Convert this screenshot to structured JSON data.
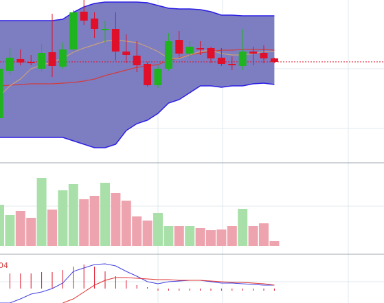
{
  "chart_data": [
    {
      "type": "candlestick",
      "ylim": [
        0,
        235
      ],
      "open": [
        63,
        132,
        149,
        145,
        135,
        159,
        138,
        163,
        218,
        208,
        191,
        193,
        160,
        154,
        142,
        111,
        135,
        177,
        157,
        165,
        165,
        151,
        142,
        139,
        160,
        158,
        150
      ],
      "high": [
        145,
        165,
        163,
        155,
        171,
        215,
        173,
        220,
        235,
        217,
        205,
        217,
        185,
        175,
        145,
        140,
        187,
        190,
        175,
        175,
        167,
        165,
        153,
        193,
        167,
        169,
        151
      ],
      "low": [
        63,
        127,
        140,
        140,
        131,
        123,
        135,
        160,
        199,
        180,
        173,
        147,
        143,
        130,
        109,
        107,
        132,
        153,
        150,
        155,
        143,
        139,
        133,
        133,
        140,
        143,
        143
      ],
      "close": [
        135,
        151,
        144,
        143,
        158,
        139,
        163,
        217,
        205,
        193,
        193,
        160,
        155,
        140,
        111,
        135,
        175,
        157,
        167,
        163,
        150,
        142,
        140,
        160,
        157,
        150,
        145
      ],
      "upper": [
        205,
        205,
        205,
        205,
        205,
        205,
        207,
        217,
        225,
        230,
        232,
        232,
        232,
        232,
        231,
        227,
        223,
        222,
        222,
        221,
        218,
        213,
        213,
        212,
        212,
        212,
        212
      ],
      "lower": [
        35,
        35,
        35,
        35,
        35,
        35,
        35,
        30,
        25,
        20,
        20,
        25,
        45,
        55,
        60,
        70,
        85,
        90,
        100,
        110,
        110,
        108,
        110,
        110,
        113,
        114,
        112
      ],
      "middle": [
        110,
        111,
        112,
        113,
        113,
        113,
        114,
        115,
        117,
        120,
        125,
        129,
        133,
        137,
        139,
        141,
        147,
        151,
        155,
        158,
        160,
        162,
        162,
        163,
        163,
        163,
        162
      ],
      "ma": [
        95,
        110,
        120,
        135,
        140,
        145,
        150,
        159,
        165,
        170,
        175,
        177,
        175,
        173,
        167,
        160,
        150,
        150,
        155,
        160,
        162,
        157,
        155,
        155,
        157,
        160,
        160
      ],
      "ref_line": 145,
      "up_color": "#1fb31f",
      "down_color": "#e0102a",
      "band_color": "#2a1ee6",
      "band_fill": "#7d7dc2",
      "middle_color": "#d23c3c",
      "ma_color": "#c9a27a"
    },
    {
      "type": "volume",
      "ylim": [
        0,
        121
      ],
      "values": [
        60,
        45,
        51,
        41,
        99,
        53,
        81,
        90,
        68,
        73,
        92,
        77,
        66,
        43,
        37,
        48,
        29,
        29,
        29,
        26,
        23,
        24,
        29,
        54,
        29,
        33,
        7
      ],
      "up_color": "#a9e0a9",
      "down_color": "#eea4ae"
    },
    {
      "type": "macd",
      "ylim": [
        -21,
        50
      ],
      "label": "04",
      "hist": [
        24,
        22,
        22,
        22,
        24,
        24,
        27,
        32,
        35,
        32,
        25,
        18,
        12,
        5,
        2,
        -3,
        -3,
        -3,
        -3,
        -3,
        -3,
        -3,
        -3,
        -3,
        -3,
        -3,
        -3
      ],
      "dif": [
        -21,
        -21,
        -15,
        -8,
        -5,
        0,
        8,
        25,
        30,
        35,
        36,
        33,
        25,
        18,
        10,
        7,
        10,
        11,
        12,
        12,
        10,
        8,
        8,
        7,
        6,
        5,
        5
      ],
      "dea": [
        null,
        null,
        null,
        null,
        null,
        null,
        -21,
        -15,
        -5,
        5,
        12,
        16,
        16,
        15,
        14,
        13,
        13,
        12,
        12,
        12,
        11,
        10,
        9,
        9,
        8,
        7,
        5
      ],
      "hist_color": "#e0102a",
      "dif_color": "#4040e0",
      "dea_color": "#e03030"
    }
  ]
}
